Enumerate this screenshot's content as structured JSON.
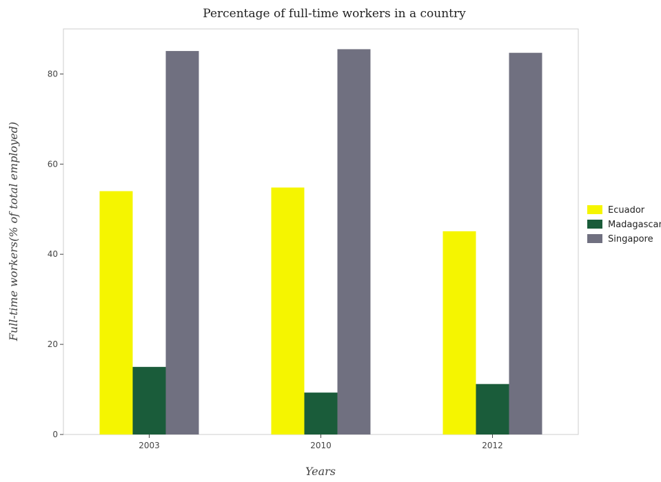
{
  "chart_data": {
    "type": "bar",
    "title": "Percentage of full-time workers in a country",
    "xlabel": "Years",
    "ylabel": "Full-time workers(% of total employed)",
    "categories": [
      "2003",
      "2010",
      "2012"
    ],
    "series": [
      {
        "name": "Ecuador",
        "color": "#f5f500",
        "values": [
          54.0,
          54.8,
          45.1
        ]
      },
      {
        "name": "Madagascar",
        "color": "#1a5c3a",
        "values": [
          15.0,
          9.3,
          11.2
        ]
      },
      {
        "name": "Singapore",
        "color": "#707080",
        "values": [
          85.1,
          85.5,
          84.7
        ]
      }
    ],
    "ylim": [
      0,
      90
    ],
    "yticks": [
      0,
      20,
      40,
      60,
      80
    ],
    "grid": false,
    "legend_position": "right"
  }
}
